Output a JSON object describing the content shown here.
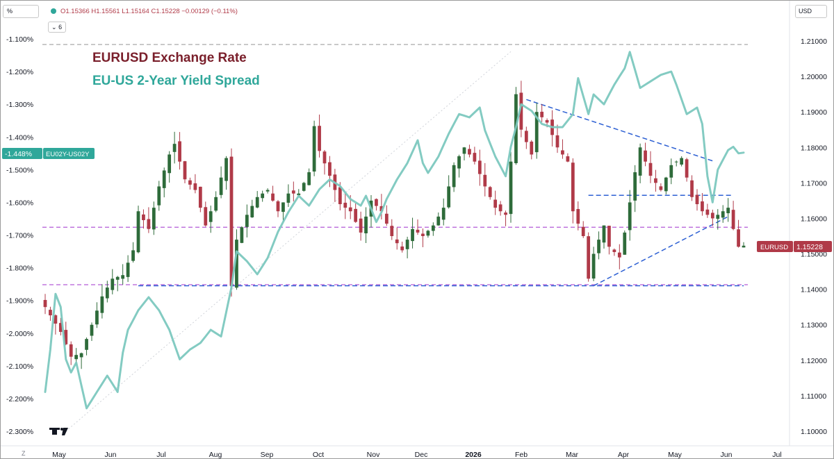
{
  "header": {
    "left_unit_button": "%",
    "ohlc": "O1.15366 H1.15561 L1.15164 C1.15228 −0.00129 (−0.11%)",
    "indicators_toggle": "6",
    "right_currency_button": "USD"
  },
  "colors": {
    "candle_up": "#2e6b3a",
    "candle_down": "#b03a48",
    "spread_line": "#7cc8bf",
    "dashed_blue": "#2c5fd3",
    "dashed_purple": "#b35ad6",
    "title_red": "#7a1f2b",
    "title_teal": "#2fa79a"
  },
  "chart_data": {
    "type": "line",
    "title": "EURUSD Exchange Rate",
    "subtitle": "EU-US 2-Year Yield Spread",
    "x_ticks": [
      "May",
      "Jun",
      "Jul",
      "Aug",
      "Sep",
      "Oct",
      "Nov",
      "Dec",
      "2026",
      "Feb",
      "Mar",
      "Apr",
      "May",
      "Jun",
      "Jul"
    ],
    "left_axis": {
      "ticks": [
        "-1.100%",
        "-1.200%",
        "-1.300%",
        "-1.400%",
        "-1.500%",
        "-1.600%",
        "-1.700%",
        "-1.800%",
        "-1.900%",
        "-2.000%",
        "-2.100%",
        "-2.200%",
        "-2.300%"
      ],
      "range": [
        -2.3,
        -1.1
      ],
      "current_label": "-1.448%",
      "current_value": -1.448,
      "series_label": "EU02Y-US02Y"
    },
    "right_axis": {
      "ticks": [
        "1.21000",
        "1.20000",
        "1.19000",
        "1.18000",
        "1.17000",
        "1.16000",
        "1.15000",
        "1.14000",
        "1.13000",
        "1.12000",
        "1.11000",
        "1.10000"
      ],
      "range": [
        1.1,
        1.21
      ],
      "current_label": "1.15228",
      "current_value": 1.15228,
      "series_label": "EURUSD"
    },
    "eurusd_anchors": [
      [
        0,
        1.135
      ],
      [
        3,
        1.128
      ],
      [
        5,
        1.121
      ],
      [
        7,
        1.122
      ],
      [
        9,
        1.13
      ],
      [
        11,
        1.138
      ],
      [
        13,
        1.143
      ],
      [
        15,
        1.144
      ],
      [
        17,
        1.151
      ],
      [
        18,
        1.162
      ],
      [
        20,
        1.157
      ],
      [
        22,
        1.169
      ],
      [
        24,
        1.178
      ],
      [
        25,
        1.181
      ],
      [
        27,
        1.171
      ],
      [
        29,
        1.168
      ],
      [
        31,
        1.158
      ],
      [
        33,
        1.166
      ],
      [
        35,
        1.177
      ],
      [
        36,
        1.141
      ],
      [
        37,
        1.154
      ],
      [
        39,
        1.161
      ],
      [
        41,
        1.166
      ],
      [
        43,
        1.168
      ],
      [
        45,
        1.162
      ],
      [
        47,
        1.167
      ],
      [
        49,
        1.167
      ],
      [
        51,
        1.173
      ],
      [
        52,
        1.186
      ],
      [
        53,
        1.179
      ],
      [
        55,
        1.172
      ],
      [
        57,
        1.164
      ],
      [
        59,
        1.162
      ],
      [
        61,
        1.156
      ],
      [
        63,
        1.165
      ],
      [
        65,
        1.162
      ],
      [
        67,
        1.155
      ],
      [
        69,
        1.151
      ],
      [
        71,
        1.157
      ],
      [
        73,
        1.155
      ],
      [
        75,
        1.158
      ],
      [
        77,
        1.163
      ],
      [
        79,
        1.175
      ],
      [
        81,
        1.18
      ],
      [
        83,
        1.176
      ],
      [
        85,
        1.169
      ],
      [
        87,
        1.163
      ],
      [
        89,
        1.161
      ],
      [
        90,
        1.176
      ],
      [
        91,
        1.195
      ],
      [
        92,
        1.185
      ],
      [
        94,
        1.178
      ],
      [
        95,
        1.19
      ],
      [
        97,
        1.187
      ],
      [
        99,
        1.18
      ],
      [
        101,
        1.176
      ],
      [
        102,
        1.162
      ],
      [
        104,
        1.155
      ],
      [
        105,
        1.143
      ],
      [
        106,
        1.15
      ],
      [
        108,
        1.158
      ],
      [
        109,
        1.152
      ],
      [
        111,
        1.149
      ],
      [
        112,
        1.156
      ],
      [
        114,
        1.173
      ],
      [
        115,
        1.18
      ],
      [
        117,
        1.172
      ],
      [
        119,
        1.168
      ],
      [
        121,
        1.175
      ],
      [
        123,
        1.177
      ],
      [
        125,
        1.166
      ],
      [
        127,
        1.162
      ],
      [
        129,
        1.16
      ],
      [
        131,
        1.162
      ],
      [
        132,
        1.163
      ],
      [
        133,
        1.157
      ],
      [
        134,
        1.152
      ],
      [
        135,
        1.1523
      ]
    ],
    "spread_line_anchors": [
      [
        0,
        -2.18
      ],
      [
        1,
        -2.05
      ],
      [
        2,
        -1.88
      ],
      [
        3,
        -1.92
      ],
      [
        4,
        -2.08
      ],
      [
        5,
        -2.12
      ],
      [
        6,
        -2.09
      ],
      [
        7,
        -2.16
      ],
      [
        8,
        -2.23
      ],
      [
        10,
        -2.18
      ],
      [
        12,
        -2.13
      ],
      [
        14,
        -2.18
      ],
      [
        15,
        -2.06
      ],
      [
        16,
        -1.99
      ],
      [
        18,
        -1.93
      ],
      [
        20,
        -1.89
      ],
      [
        22,
        -1.93
      ],
      [
        24,
        -1.99
      ],
      [
        26,
        -2.08
      ],
      [
        28,
        -2.05
      ],
      [
        30,
        -2.03
      ],
      [
        32,
        -1.99
      ],
      [
        34,
        -2.01
      ],
      [
        36,
        -1.86
      ],
      [
        37,
        -1.75
      ],
      [
        39,
        -1.78
      ],
      [
        41,
        -1.82
      ],
      [
        43,
        -1.77
      ],
      [
        45,
        -1.69
      ],
      [
        47,
        -1.63
      ],
      [
        49,
        -1.58
      ],
      [
        51,
        -1.61
      ],
      [
        53,
        -1.56
      ],
      [
        55,
        -1.53
      ],
      [
        57,
        -1.55
      ],
      [
        59,
        -1.59
      ],
      [
        61,
        -1.61
      ],
      [
        62,
        -1.58
      ],
      [
        64,
        -1.66
      ],
      [
        65,
        -1.63
      ],
      [
        66,
        -1.59
      ],
      [
        68,
        -1.53
      ],
      [
        70,
        -1.48
      ],
      [
        72,
        -1.41
      ],
      [
        73,
        -1.48
      ],
      [
        74,
        -1.51
      ],
      [
        76,
        -1.46
      ],
      [
        78,
        -1.39
      ],
      [
        80,
        -1.33
      ],
      [
        82,
        -1.34
      ],
      [
        84,
        -1.31
      ],
      [
        85,
        -1.38
      ],
      [
        87,
        -1.46
      ],
      [
        89,
        -1.52
      ],
      [
        90,
        -1.43
      ],
      [
        91,
        -1.37
      ],
      [
        92,
        -1.3
      ],
      [
        94,
        -1.32
      ],
      [
        96,
        -1.36
      ],
      [
        98,
        -1.37
      ],
      [
        100,
        -1.37
      ],
      [
        102,
        -1.33
      ],
      [
        103,
        -1.22
      ],
      [
        105,
        -1.33
      ],
      [
        106,
        -1.27
      ],
      [
        108,
        -1.3
      ],
      [
        110,
        -1.24
      ],
      [
        112,
        -1.19
      ],
      [
        113,
        -1.14
      ],
      [
        115,
        -1.25
      ],
      [
        117,
        -1.23
      ],
      [
        119,
        -1.21
      ],
      [
        121,
        -1.2
      ],
      [
        122,
        -1.24
      ],
      [
        124,
        -1.33
      ],
      [
        126,
        -1.31
      ],
      [
        127,
        -1.36
      ],
      [
        128,
        -1.52
      ],
      [
        129,
        -1.6
      ],
      [
        130,
        -1.5
      ],
      [
        131,
        -1.47
      ],
      [
        132,
        -1.44
      ],
      [
        133,
        -1.43
      ],
      [
        134,
        -1.45
      ],
      [
        135,
        -1.448
      ]
    ],
    "annotations": [
      {
        "kind": "h-purple",
        "axis": "right",
        "y": 1.1575
      },
      {
        "kind": "h-purple",
        "axis": "right",
        "y": 1.1413
      },
      {
        "kind": "h-gray",
        "axis": "right",
        "y": 1.209
      },
      {
        "kind": "segment-blue",
        "axis": "right",
        "from": [
          18,
          1.141
        ],
        "to": [
          135,
          1.141
        ]
      },
      {
        "kind": "segment-blue",
        "axis": "right",
        "from": [
          105,
          1.1665
        ],
        "to": [
          133,
          1.1665
        ]
      },
      {
        "kind": "segment-blue",
        "axis": "right",
        "from": [
          93,
          1.1935
        ],
        "to": [
          129,
          1.1762
        ]
      },
      {
        "kind": "segment-blue",
        "axis": "right",
        "from": [
          106,
          1.141
        ],
        "to": [
          132,
          1.1605
        ]
      },
      {
        "kind": "segment-gray-dotted",
        "axis": "right",
        "from": [
          4,
          1.1
        ],
        "to": [
          90,
          1.207
        ]
      }
    ],
    "grid": false,
    "legend": "top-left"
  }
}
